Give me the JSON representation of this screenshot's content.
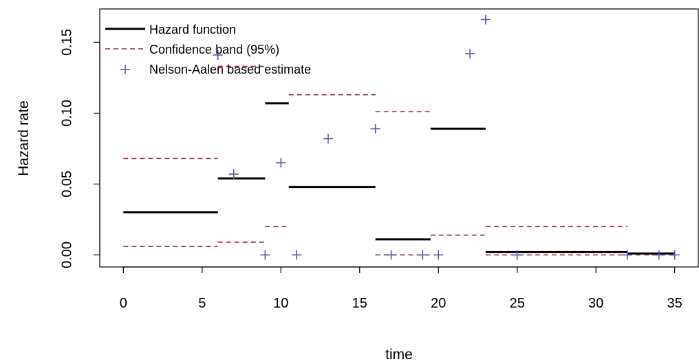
{
  "chart_data": {
    "type": "line",
    "xlabel": "time",
    "ylabel": "Hazard rate",
    "xlim": [
      -1.5,
      36.5
    ],
    "ylim": [
      -0.0085,
      0.1735
    ],
    "x_ticks": [
      0,
      5,
      10,
      15,
      20,
      25,
      30,
      35
    ],
    "x_tick_labels": [
      "0",
      "5",
      "10",
      "15",
      "20",
      "25",
      "30",
      "35"
    ],
    "y_ticks": [
      0.0,
      0.05,
      0.1,
      0.15
    ],
    "y_tick_labels": [
      "0.00",
      "0.05",
      "0.10",
      "0.15"
    ],
    "grid": false,
    "legend_position": "top-left",
    "series": [
      {
        "name": "Hazard function",
        "kind": "step",
        "color": "#000000",
        "style": "solid",
        "segments": [
          {
            "x0": 0,
            "x1": 6,
            "y": 0.03
          },
          {
            "x0": 6,
            "x1": 9,
            "y": 0.054
          },
          {
            "x0": 9,
            "x1": 10.5,
            "y": 0.107
          },
          {
            "x0": 10.5,
            "x1": 16,
            "y": 0.048
          },
          {
            "x0": 16,
            "x1": 19.5,
            "y": 0.011
          },
          {
            "x0": 19.5,
            "x1": 23,
            "y": 0.089
          },
          {
            "x0": 23,
            "x1": 32,
            "y": 0.002
          },
          {
            "x0": 32,
            "x1": 35,
            "y": 0.001
          }
        ]
      },
      {
        "name": "Confidence band (95%)",
        "kind": "step",
        "color": "#a52a2a",
        "style": "dashed",
        "upper": [
          {
            "x0": 0,
            "x1": 6,
            "y": 0.068
          },
          {
            "x0": 6,
            "x1": 9,
            "y": 0.133
          },
          {
            "x0": 9,
            "x1": 10.5,
            "y": 0.02
          },
          {
            "x0": 10.5,
            "x1": 16,
            "y": 0.113
          },
          {
            "x0": 16,
            "x1": 19.5,
            "y": 0.101
          },
          {
            "x0": 19.5,
            "x1": 23,
            "y": 0.014
          },
          {
            "x0": 23,
            "x1": 32,
            "y": 0.02
          },
          {
            "x0": 32,
            "x1": 35,
            "y": 0.001
          }
        ],
        "lower": [
          {
            "x0": 0,
            "x1": 6,
            "y": 0.006
          },
          {
            "x0": 6,
            "x1": 9,
            "y": 0.009
          },
          {
            "x0": 16,
            "x1": 19.5,
            "y": 0.0
          },
          {
            "x0": 23,
            "x1": 32,
            "y": 0.0
          },
          {
            "x0": 32,
            "x1": 35,
            "y": 0.0
          }
        ]
      },
      {
        "name": "Nelson-Aalen based estimate",
        "kind": "scatter",
        "color": "#5c54b0",
        "marker": "+",
        "points": [
          [
            6,
            0.141
          ],
          [
            7,
            0.057
          ],
          [
            9,
            0.0
          ],
          [
            10,
            0.065
          ],
          [
            11,
            0.0
          ],
          [
            13,
            0.082
          ],
          [
            16,
            0.089
          ],
          [
            17,
            0.0
          ],
          [
            19,
            0.0
          ],
          [
            20,
            0.0
          ],
          [
            22,
            0.142
          ],
          [
            23,
            0.166
          ],
          [
            25,
            0.0
          ],
          [
            32,
            0.0
          ],
          [
            34,
            0.0
          ],
          [
            35,
            0.0
          ]
        ]
      }
    ]
  }
}
